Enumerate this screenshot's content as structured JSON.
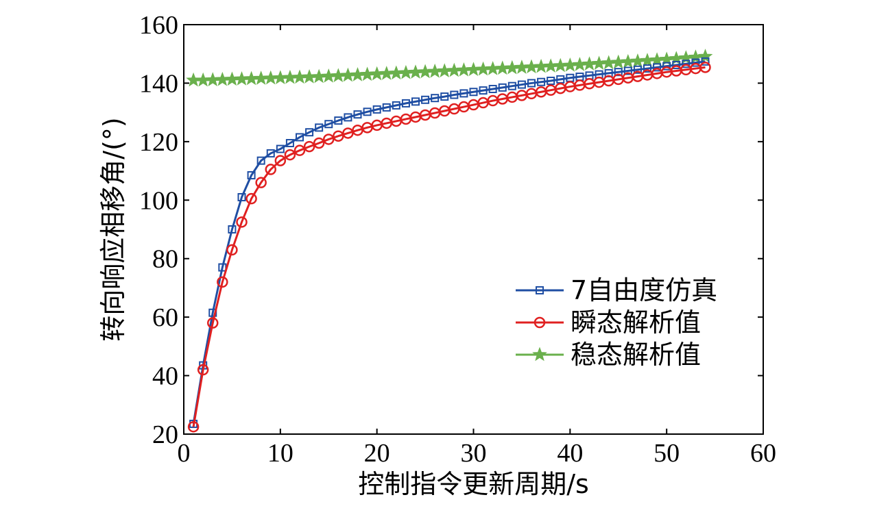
{
  "chart_data": {
    "type": "line",
    "title": "",
    "xlabel": "控制指令更新周期/s",
    "ylabel": "转向响应相移角/(°)",
    "xlim": [
      0,
      60
    ],
    "ylim": [
      20,
      160
    ],
    "xticks": [
      0,
      10,
      20,
      30,
      40,
      50,
      60
    ],
    "yticks": [
      20,
      40,
      60,
      80,
      100,
      120,
      140,
      160
    ],
    "grid": false,
    "legend_position": "lower-right",
    "x": [
      1,
      2,
      3,
      4,
      5,
      6,
      7,
      8,
      9,
      10,
      11,
      12,
      13,
      14,
      15,
      16,
      17,
      18,
      19,
      20,
      21,
      22,
      23,
      24,
      25,
      26,
      27,
      28,
      29,
      30,
      31,
      32,
      33,
      34,
      35,
      36,
      37,
      38,
      39,
      40,
      41,
      42,
      43,
      44,
      45,
      46,
      47,
      48,
      49,
      50,
      51,
      52,
      53,
      54
    ],
    "series": [
      {
        "name": "7自由度仿真",
        "color": "#1f4ea3",
        "marker": "square",
        "values": [
          23.5,
          43.5,
          61.5,
          77,
          90,
          101,
          108.5,
          113.5,
          116,
          117.5,
          119.5,
          121.5,
          123.2,
          124.8,
          126,
          127.2,
          128.3,
          129.3,
          130.2,
          131,
          131.7,
          132.4,
          133.1,
          133.7,
          134.3,
          134.9,
          135.4,
          136,
          136.5,
          137,
          137.5,
          138,
          138.5,
          139,
          139.5,
          140,
          140.4,
          140.8,
          141.3,
          141.8,
          142.2,
          142.6,
          143,
          143.4,
          143.8,
          144.2,
          144.6,
          145,
          145.4,
          145.8,
          146.2,
          146.6,
          147,
          147.4
        ]
      },
      {
        "name": "瞬态解析值",
        "color": "#e02020",
        "marker": "circle",
        "values": [
          22.5,
          42,
          58,
          72,
          83,
          92.5,
          100.5,
          106,
          110.5,
          113.5,
          115.5,
          117,
          118.3,
          119.5,
          120.8,
          121.9,
          122.9,
          123.9,
          124.8,
          125.6,
          126.3,
          127,
          127.7,
          128.4,
          129.1,
          129.8,
          130.5,
          131.2,
          131.9,
          132.6,
          133.3,
          134,
          134.6,
          135.2,
          135.8,
          136.4,
          137,
          137.6,
          138.2,
          138.8,
          139.3,
          139.8,
          140.3,
          140.8,
          141.3,
          141.8,
          142.3,
          142.8,
          143.3,
          143.8,
          144.2,
          144.6,
          145,
          145.4
        ]
      },
      {
        "name": "稳态解析值",
        "color": "#6ab04c",
        "marker": "star",
        "values": [
          141,
          141,
          141.1,
          141.2,
          141.3,
          141.4,
          141.5,
          141.6,
          141.7,
          141.8,
          141.9,
          142,
          142.1,
          142.2,
          142.35,
          142.5,
          142.65,
          142.8,
          142.95,
          143.1,
          143.25,
          143.4,
          143.55,
          143.7,
          143.85,
          144,
          144.15,
          144.3,
          144.45,
          144.6,
          144.75,
          144.9,
          145.05,
          145.2,
          145.35,
          145.5,
          145.65,
          145.8,
          145.95,
          146.1,
          146.3,
          146.5,
          146.7,
          146.9,
          147.1,
          147.3,
          147.5,
          147.7,
          147.9,
          148.1,
          148.35,
          148.6,
          148.85,
          149.1
        ]
      }
    ]
  }
}
